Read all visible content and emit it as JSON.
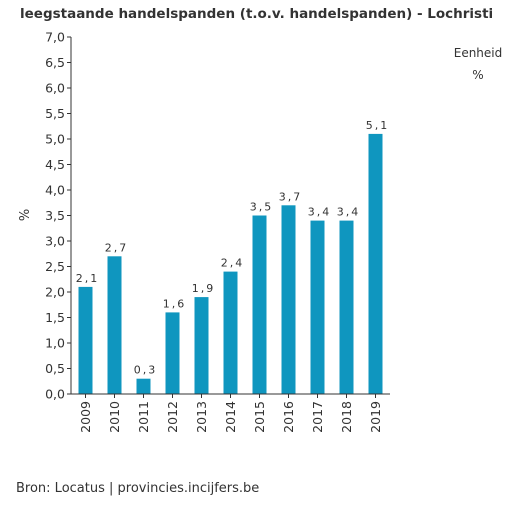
{
  "chart_data": {
    "type": "bar",
    "title": "leegstaande handelspanden (t.o.v. handelspanden) - Lochristi",
    "xlabel": "",
    "ylabel": "%",
    "categories": [
      "2009",
      "2010",
      "2011",
      "2012",
      "2013",
      "2014",
      "2015",
      "2016",
      "2017",
      "2018",
      "2019"
    ],
    "values": [
      2.1,
      2.7,
      0.3,
      1.6,
      1.9,
      2.4,
      3.5,
      3.7,
      3.4,
      3.4,
      5.1
    ],
    "data_labels": [
      "2,1",
      "2,7",
      "0,3",
      "1,6",
      "1,9",
      "2,4",
      "3,5",
      "3,7",
      "3,4",
      "3,4",
      "5,1"
    ],
    "yticks": [
      "0,0",
      "0,5",
      "1,0",
      "1,5",
      "2,0",
      "2,5",
      "3,0",
      "3,5",
      "4,0",
      "4,5",
      "5,0",
      "5,5",
      "6,0",
      "6,5",
      "7,0"
    ],
    "ylim": [
      0,
      7
    ],
    "grid": false,
    "bar_color": "#0f96bf"
  },
  "unit": {
    "label": "Eenheid",
    "value": "%"
  },
  "source": "Bron: Locatus | provincies.incijfers.be"
}
